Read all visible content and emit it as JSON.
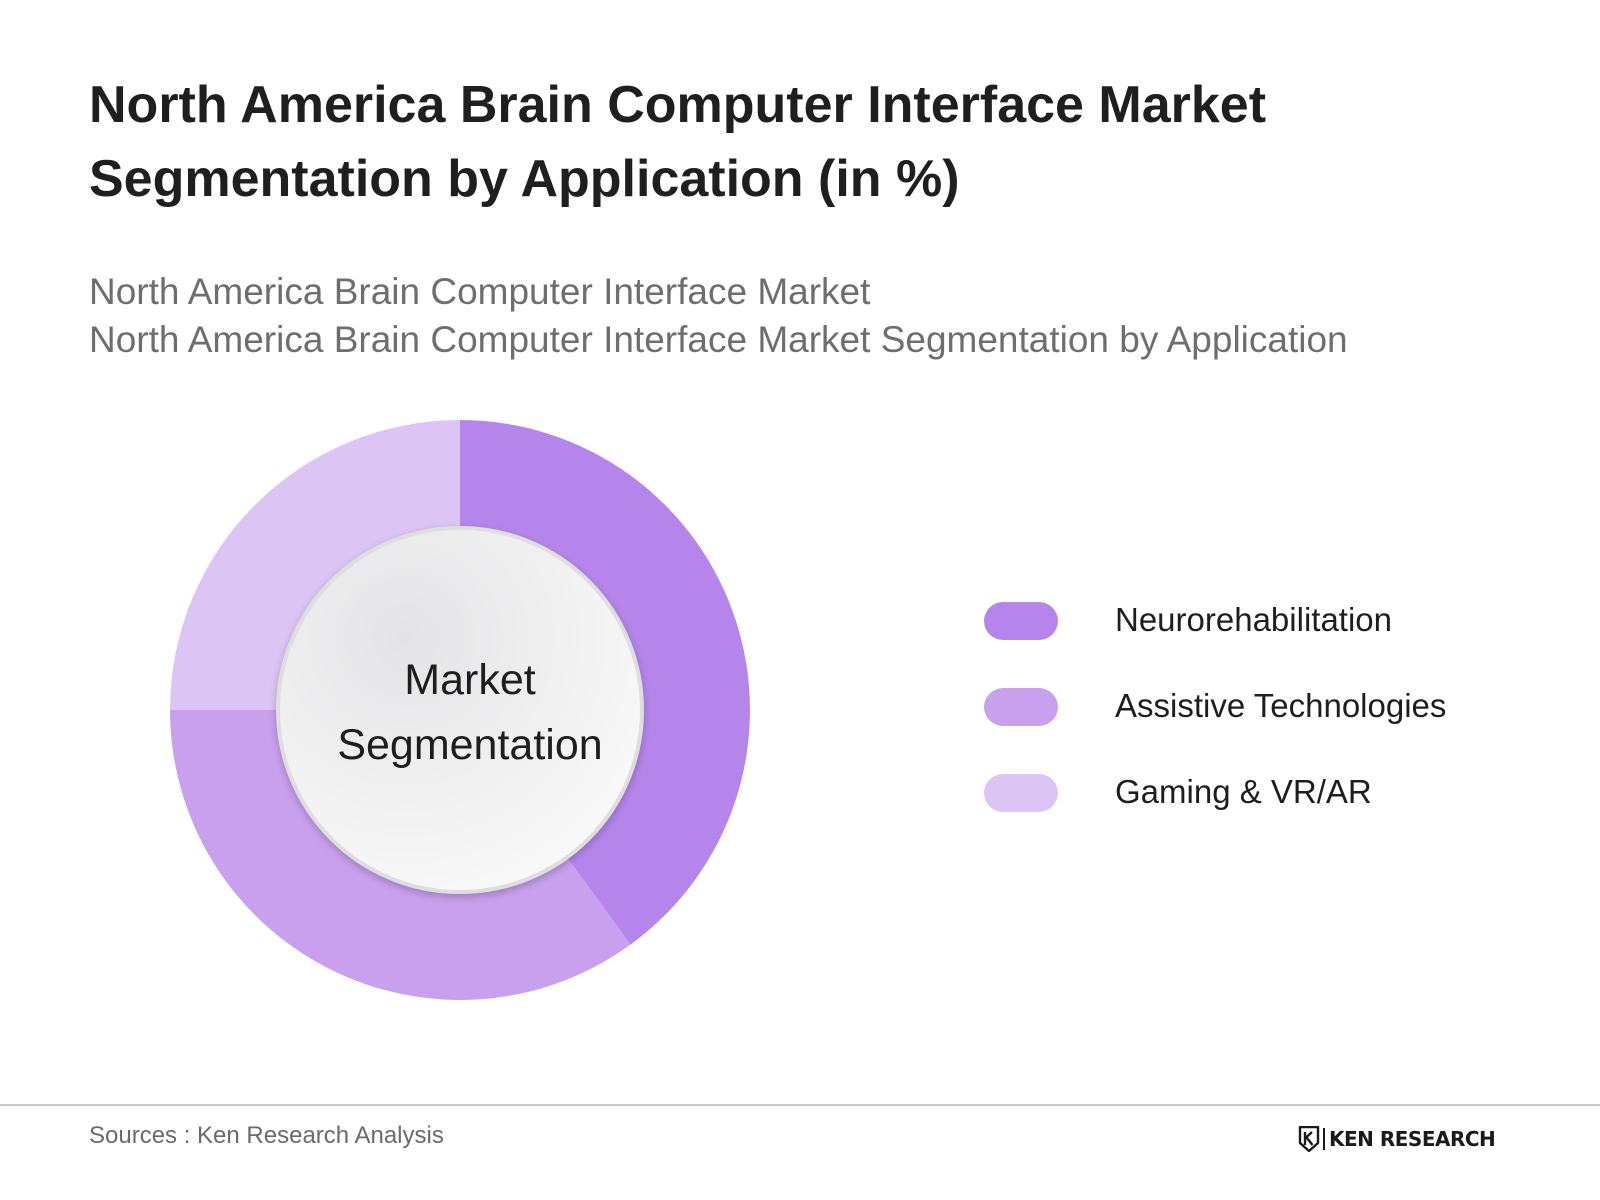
{
  "title": {
    "line1": "North America Brain Computer Interface Market",
    "line2": "Segmentation by Application  (in %)"
  },
  "subtitle": {
    "line1": "North America Brain Computer Interface Market",
    "line2": "North America Brain Computer Interface Market Segmentation by Application"
  },
  "center_label": {
    "line1": "Market",
    "line2": "Segmentation"
  },
  "chart_data": {
    "type": "pie",
    "variant": "donut",
    "categories": [
      "Neurorehabilitation",
      "Assistive Technologies",
      "Gaming & VR/AR"
    ],
    "values": [
      40,
      35,
      25
    ],
    "colors": [
      "#b585eb",
      "#c8a0ee",
      "#dcc4f5"
    ],
    "start_angle_deg": 0,
    "direction": "clockwise",
    "legend_position": "right"
  },
  "legend": {
    "items": [
      {
        "label": "Neurorehabilitation",
        "color": "#b585eb"
      },
      {
        "label": "Assistive Technologies",
        "color": "#c8a0ee"
      },
      {
        "label": "Gaming & VR/AR",
        "color": "#dcc4f5"
      }
    ]
  },
  "footer": {
    "source": "Sources : Ken Research Analysis",
    "brand": "KEN RESEARCH"
  }
}
